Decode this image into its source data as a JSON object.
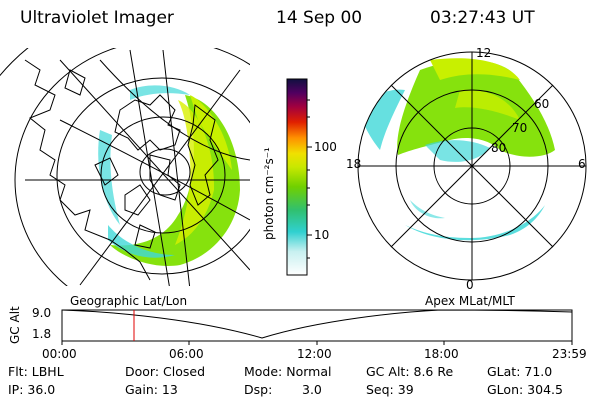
{
  "header": {
    "instrument": "Ultraviolet Imager",
    "date": "14 Sep 00",
    "time": "03:27:43 UT"
  },
  "colorbar": {
    "label": "photon cm⁻²s⁻¹",
    "ticks": [
      "100",
      "10"
    ]
  },
  "polar_plot": {
    "mlt_labels": [
      "12",
      "18",
      "6",
      "0"
    ],
    "mlat_labels": [
      "60",
      "70",
      "80"
    ]
  },
  "map_labels": {
    "left": "Geographic Lat/Lon",
    "right": "Apex  MLat/MLT"
  },
  "altitude_plot": {
    "ylabel": "GC Alt",
    "yticks": [
      "9.0",
      "1.8"
    ],
    "xticks": [
      "00:00",
      "06:00",
      "12:00",
      "18:00",
      "23:59"
    ],
    "marker_time": "03:27:43"
  },
  "status": {
    "flt": "Flt: LBHL",
    "ip": "IP: 36.0",
    "door": "Door: Closed",
    "gain": "Gain: 13",
    "mode": "Mode: Normal",
    "dsp_label": "Dsp:",
    "dsp_value": "3.0",
    "gc_alt": "GC Alt: 8.6 Re",
    "seq": "Seq: 39",
    "glat": "GLat:  71.0",
    "glon": "GLon: 304.5"
  },
  "colors": {
    "aurora_green": "#7fe000",
    "aurora_yellowgreen": "#c8f000",
    "aurora_cyan": "#40d8d8",
    "marker_red": "#e00000"
  }
}
